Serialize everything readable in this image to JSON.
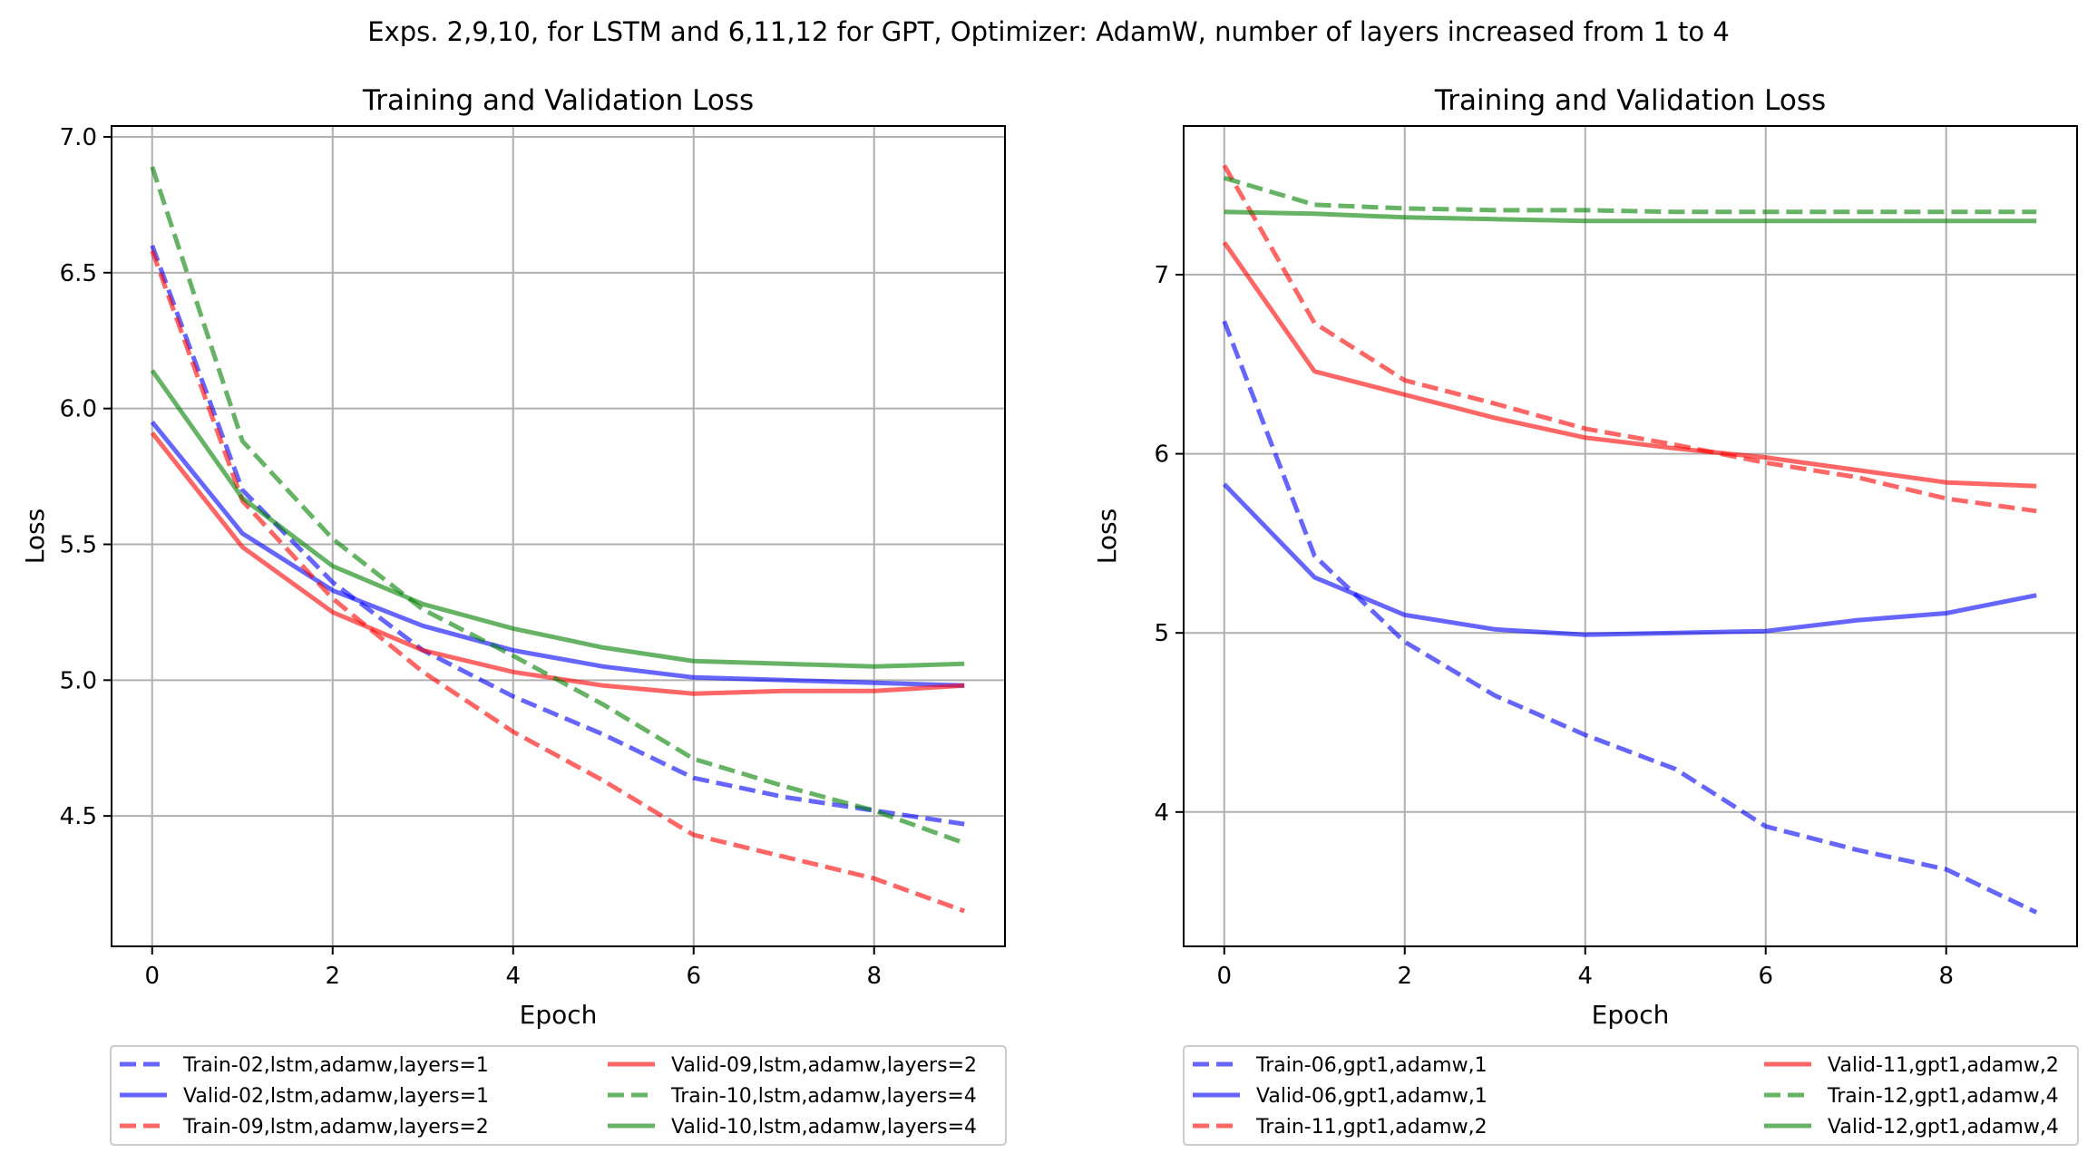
{
  "figure_title": "Exps. 2,9,10, for LSTM and 6,11,12 for GPT, Optimizer: AdamW, number of layers increased from 1 to 4",
  "colors": {
    "blue": "#0000ff",
    "red": "#ff0000",
    "green": "#008000",
    "grid": "#b0b0b0"
  },
  "chart_data": [
    {
      "type": "line",
      "title": "Training and Validation Loss",
      "xlabel": "Epoch",
      "ylabel": "Loss",
      "xlim": [
        -0.45,
        9.45
      ],
      "ylim": [
        4.02,
        7.04
      ],
      "xticks": [
        0,
        2,
        4,
        6,
        8
      ],
      "yticks": [
        4.5,
        5.0,
        5.5,
        6.0,
        6.5,
        7.0
      ],
      "ytick_labels": [
        "4.5",
        "5.0",
        "5.5",
        "6.0",
        "6.5",
        "7.0"
      ],
      "grid": true,
      "legend_position": "below",
      "legend_columns": 2,
      "x": [
        0,
        1,
        2,
        3,
        4,
        5,
        6,
        7,
        8,
        9
      ],
      "series": [
        {
          "name": "Train-02,lstm,adamw,layers=1",
          "color": "blue",
          "style": "dashed",
          "values": [
            6.6,
            5.7,
            5.36,
            5.11,
            4.94,
            4.8,
            4.64,
            4.57,
            4.52,
            4.47
          ]
        },
        {
          "name": "Valid-02,lstm,adamw,layers=1",
          "color": "blue",
          "style": "solid",
          "values": [
            5.95,
            5.54,
            5.33,
            5.2,
            5.11,
            5.05,
            5.01,
            5.0,
            4.99,
            4.98
          ]
        },
        {
          "name": "Train-09,lstm,adamw,layers=2",
          "color": "red",
          "style": "dashed",
          "values": [
            6.58,
            5.66,
            5.3,
            5.03,
            4.81,
            4.63,
            4.43,
            4.35,
            4.27,
            4.15
          ]
        },
        {
          "name": "Valid-09,lstm,adamw,layers=2",
          "color": "red",
          "style": "solid",
          "values": [
            5.91,
            5.49,
            5.25,
            5.11,
            5.03,
            4.98,
            4.95,
            4.96,
            4.96,
            4.98
          ]
        },
        {
          "name": "Train-10,lstm,adamw,layers=4",
          "color": "green",
          "style": "dashed",
          "values": [
            6.89,
            5.88,
            5.52,
            5.26,
            5.09,
            4.91,
            4.71,
            4.61,
            4.52,
            4.4
          ]
        },
        {
          "name": "Valid-10,lstm,adamw,layers=4",
          "color": "green",
          "style": "solid",
          "values": [
            6.14,
            5.67,
            5.42,
            5.28,
            5.19,
            5.12,
            5.07,
            5.06,
            5.05,
            5.06
          ]
        }
      ]
    },
    {
      "type": "line",
      "title": "Training and Validation Loss",
      "xlabel": "Epoch",
      "ylabel": "Loss",
      "xlim": [
        -0.45,
        9.45
      ],
      "ylim": [
        3.25,
        7.83
      ],
      "xticks": [
        0,
        2,
        4,
        6,
        8
      ],
      "yticks": [
        4,
        5,
        6,
        7
      ],
      "ytick_labels": [
        "4",
        "5",
        "6",
        "7"
      ],
      "grid": true,
      "legend_position": "below",
      "legend_columns": 2,
      "x": [
        0,
        1,
        2,
        3,
        4,
        5,
        6,
        7,
        8,
        9
      ],
      "series": [
        {
          "name": "Train-06,gpt1,adamw,1",
          "color": "blue",
          "style": "dashed",
          "values": [
            6.74,
            5.43,
            4.95,
            4.65,
            4.43,
            4.24,
            3.92,
            3.79,
            3.68,
            3.44
          ]
        },
        {
          "name": "Valid-06,gpt1,adamw,1",
          "color": "blue",
          "style": "solid",
          "values": [
            5.83,
            5.31,
            5.1,
            5.02,
            4.99,
            5.0,
            5.01,
            5.07,
            5.11,
            5.21
          ]
        },
        {
          "name": "Train-11,gpt1,adamw,2",
          "color": "red",
          "style": "dashed",
          "values": [
            7.61,
            6.73,
            6.41,
            6.28,
            6.14,
            6.05,
            5.95,
            5.87,
            5.75,
            5.68
          ]
        },
        {
          "name": "Valid-11,gpt1,adamw,2",
          "color": "red",
          "style": "solid",
          "values": [
            7.18,
            6.46,
            6.33,
            6.2,
            6.09,
            6.03,
            5.98,
            5.91,
            5.84,
            5.82
          ]
        },
        {
          "name": "Train-12,gpt1,adamw,4",
          "color": "green",
          "style": "dashed",
          "values": [
            7.54,
            7.39,
            7.37,
            7.36,
            7.36,
            7.35,
            7.35,
            7.35,
            7.35,
            7.35
          ]
        },
        {
          "name": "Valid-12,gpt1,adamw,4",
          "color": "green",
          "style": "solid",
          "values": [
            7.35,
            7.34,
            7.32,
            7.31,
            7.3,
            7.3,
            7.3,
            7.3,
            7.3,
            7.3
          ]
        }
      ]
    }
  ]
}
